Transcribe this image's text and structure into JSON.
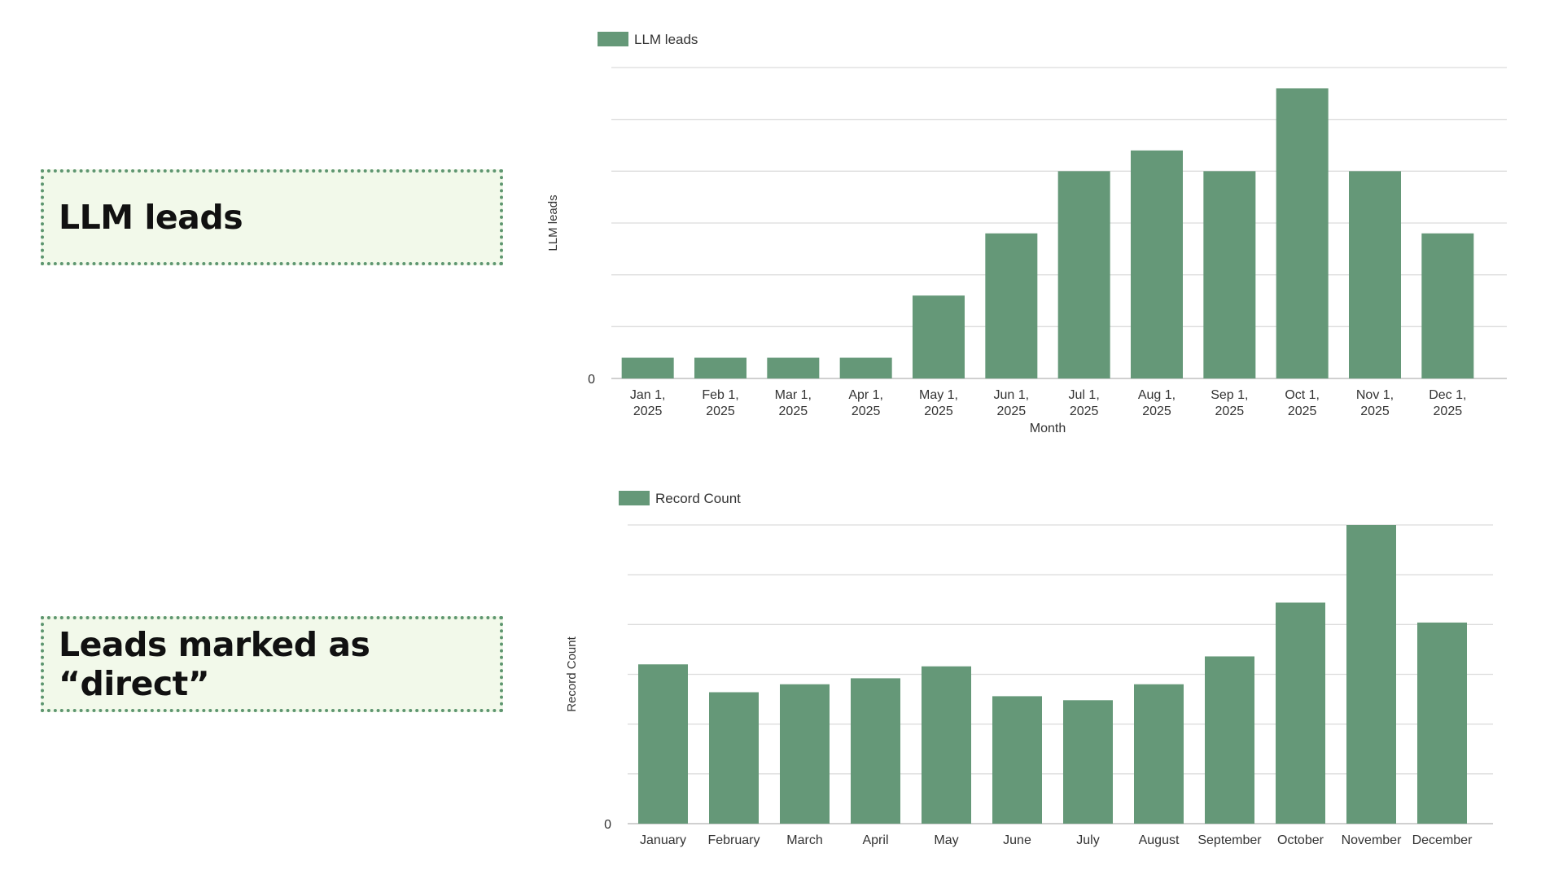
{
  "boxes": {
    "llm_label": "LLM leads",
    "direct_label": "Leads marked as “direct”"
  },
  "colors": {
    "bar": "#659878",
    "grid": "#dcdcdc",
    "axis": "#b5b5b5",
    "box_border": "#5e9670",
    "box_fill": "#f2f9ea"
  },
  "chart_data": [
    {
      "type": "bar",
      "legend": "LLM leads",
      "ylabel": "LLM leads",
      "xlabel": "Month",
      "ytick_visible": "0",
      "categories": [
        [
          "Jan 1,",
          "2025"
        ],
        [
          "Feb 1,",
          "2025"
        ],
        [
          "Mar 1,",
          "2025"
        ],
        [
          "Apr 1,",
          "2025"
        ],
        [
          "May 1,",
          "2025"
        ],
        [
          "Jun 1,",
          "2025"
        ],
        [
          "Jul 1,",
          "2025"
        ],
        [
          "Aug 1,",
          "2025"
        ],
        [
          "Sep 1,",
          "2025"
        ],
        [
          "Oct 1,",
          "2025"
        ],
        [
          "Nov 1,",
          "2025"
        ],
        [
          "Dec 1,",
          "2025"
        ]
      ],
      "values": [
        1,
        1,
        1,
        1,
        4,
        7,
        10,
        11,
        10,
        14,
        10,
        7
      ],
      "ylim": [
        0,
        15
      ],
      "grid": true,
      "legend_position": "top-left"
    },
    {
      "type": "bar",
      "legend": "Record Count",
      "ylabel": "Record Count",
      "xlabel": "",
      "ytick_visible": "0",
      "categories": [
        "January",
        "February",
        "March",
        "April",
        "May",
        "June",
        "July",
        "August",
        "September",
        "October",
        "November",
        "December"
      ],
      "values": [
        16,
        13.2,
        14,
        14.6,
        15.8,
        12.8,
        12.4,
        14,
        16.8,
        22.2,
        30,
        20.2
      ],
      "ylim": [
        0,
        30
      ],
      "grid": true,
      "legend_position": "top-left"
    }
  ]
}
